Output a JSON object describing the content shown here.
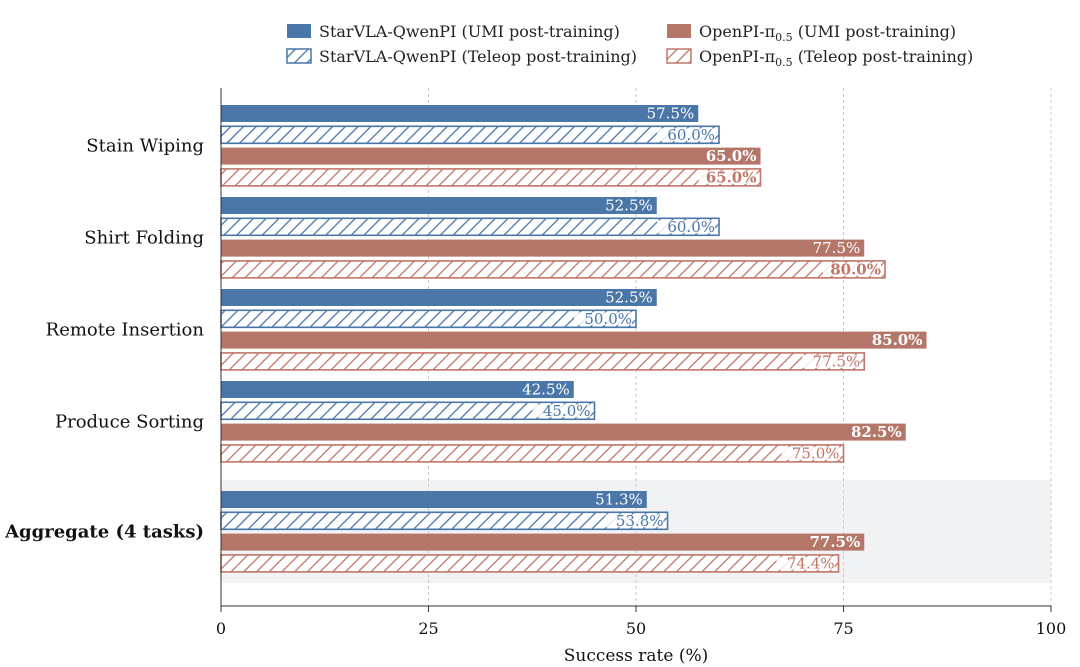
{
  "chart_data": {
    "type": "bar",
    "orientation": "horizontal",
    "categories": [
      "Stain Wiping",
      "Shirt Folding",
      "Remote Insertion",
      "Produce Sorting",
      "Aggregate (4 tasks)"
    ],
    "highlight_category": "Aggregate (4 tasks)",
    "xlabel": "Success rate (%)",
    "xlim": [
      0,
      100
    ],
    "xticks": [
      "0",
      "25",
      "50",
      "75",
      "100"
    ],
    "grid": "vertical dashed",
    "legend_position": "top",
    "series": [
      {
        "name": "StarVLA-QwenPI (UMI post-training)",
        "legend_parts": [
          "StarVLA-QwenPI (UMI post-training)"
        ],
        "color": "#4a76a8",
        "pattern": "solid",
        "values": [
          57.5,
          52.5,
          52.5,
          42.5,
          51.3
        ],
        "labels": [
          "57.5%",
          "52.5%",
          "52.5%",
          "42.5%",
          "51.3%"
        ],
        "bold": [
          false,
          false,
          false,
          false,
          false
        ]
      },
      {
        "name": "StarVLA-QwenPI (Teleop post-training)",
        "legend_parts": [
          "StarVLA-QwenPI (Teleop post-training)"
        ],
        "color": "#4a76a8",
        "pattern": "hatched",
        "values": [
          60.0,
          60.0,
          50.0,
          45.0,
          53.8
        ],
        "labels": [
          "60.0%",
          "60.0%",
          "50.0%",
          "45.0%",
          "53.8%"
        ],
        "bold": [
          false,
          false,
          false,
          false,
          false
        ]
      },
      {
        "name": "OpenPI-π0.5 (UMI post-training)",
        "legend_parts": [
          "OpenPI-π",
          "0.5",
          " (UMI post-training)"
        ],
        "color": "#b5766a",
        "pattern": "solid",
        "values": [
          65.0,
          77.5,
          85.0,
          82.5,
          77.5
        ],
        "labels": [
          "65.0%",
          "77.5%",
          "85.0%",
          "82.5%",
          "77.5%"
        ],
        "bold": [
          true,
          false,
          true,
          true,
          true
        ]
      },
      {
        "name": "OpenPI-π0.5 (Teleop post-training)",
        "legend_parts": [
          "OpenPI-π",
          "0.5",
          " (Teleop post-training)"
        ],
        "color": "#c0766a",
        "pattern": "hatched",
        "values": [
          65.0,
          80.0,
          77.5,
          75.0,
          74.4
        ],
        "labels": [
          "65.0%",
          "80.0%",
          "77.5%",
          "75.0%",
          "74.4%"
        ],
        "bold": [
          true,
          true,
          false,
          false,
          false
        ]
      }
    ]
  }
}
